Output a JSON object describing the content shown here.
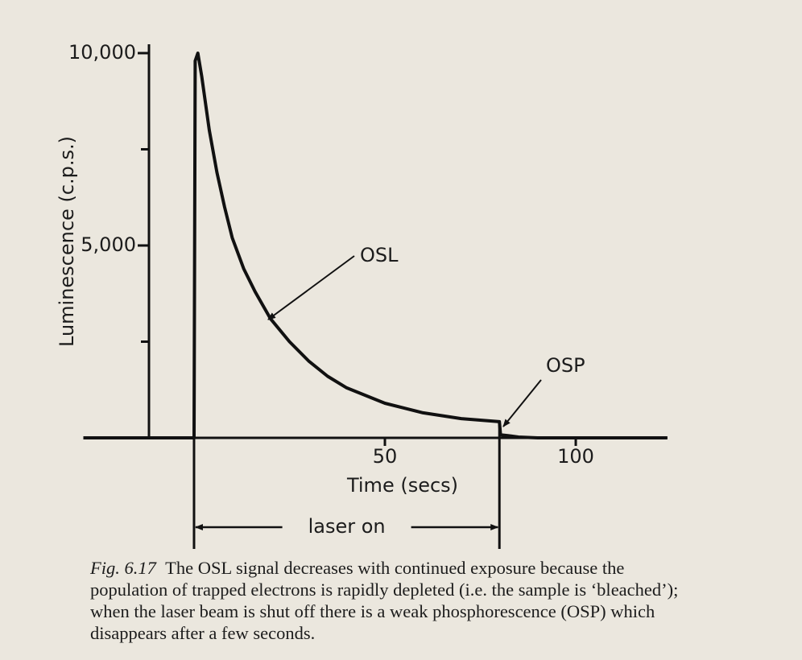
{
  "chart_data": {
    "type": "line",
    "xlabel": "Time (secs)",
    "ylabel": "Luminescence (c.p.s.)",
    "x": [
      -29,
      0,
      0.3,
      1,
      2,
      4,
      6,
      8,
      10,
      13,
      16,
      20,
      25,
      30,
      35,
      40,
      50,
      60,
      70,
      80,
      80.3,
      82,
      85,
      90,
      124
    ],
    "series": [
      {
        "name": "OSL",
        "color": "#111111",
        "values": [
          0,
          0,
          9800,
          10000,
          9400,
          8000,
          6900,
          6000,
          5200,
          4400,
          3800,
          3100,
          2500,
          2000,
          1600,
          1300,
          900,
          650,
          500,
          420,
          80,
          60,
          20,
          0,
          0
        ]
      }
    ],
    "xlim": [
      -29,
      124
    ],
    "ylim": [
      0,
      10230
    ],
    "xticks": [
      50,
      100
    ],
    "yticks": [
      {
        "value": 5000,
        "label": "5,000"
      },
      {
        "value": 10000,
        "label": "10,000"
      }
    ],
    "minor_yticks": [
      2500,
      7500
    ],
    "annotations": [
      {
        "text": "OSL"
      },
      {
        "text": "OSP"
      }
    ],
    "span": {
      "label": "laser on",
      "x": [
        0,
        80
      ]
    },
    "figure_label": "Fig. 6.17",
    "caption_lines": [
      "The OSL signal decreases with continued exposure because the",
      "population of trapped electrons is rapidly depleted (i.e. the sample is ‘bleached’);",
      "when the laser beam is shut off there is a weak phosphorescence (OSP) which",
      "disappears after a few seconds."
    ]
  }
}
